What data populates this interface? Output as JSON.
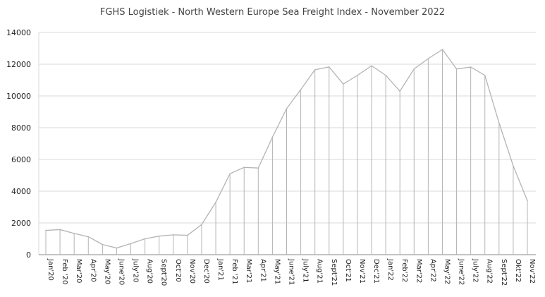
{
  "chart_data": {
    "type": "line",
    "title": "FGHS Logistiek - North Western Europe Sea Freight Index - November 2022",
    "xlabel": "",
    "ylabel": "",
    "ylim": [
      0,
      14000
    ],
    "yticks": [
      "0",
      "2000",
      "4000",
      "6000",
      "8000",
      "10000",
      "12000",
      "14000"
    ],
    "grid": true,
    "categories": [
      "Jan'20",
      "Feb '20",
      "Mar'20",
      "Apr'20",
      "May'20",
      "June'20",
      "July'20",
      "Aug'20",
      "Sept'20",
      "Oct'20",
      "Nov'20",
      "Dec'20",
      "Jan'21",
      "Feb '21",
      "Mar'21",
      "Apr'21",
      "May'21",
      "June'21",
      "July'21",
      "Aug'21",
      "Sept'21",
      "Oct'21",
      "Nov'21",
      "Dec'21",
      "Jan'22",
      "Feb'22",
      "Mar'22",
      "Apr'22",
      "May'22",
      "June'22",
      "July'22",
      "Aug'22",
      "Sept'22",
      "Okt'22",
      "Nov'22"
    ],
    "series": [
      {
        "name": "Sea Freight Index",
        "values": [
          1530,
          1580,
          1340,
          1130,
          640,
          420,
          700,
          1000,
          1170,
          1250,
          1220,
          1900,
          3300,
          5100,
          5500,
          5460,
          7400,
          9200,
          10400,
          11650,
          11830,
          10750,
          11300,
          11900,
          11300,
          10300,
          11700,
          12350,
          12930,
          11700,
          11820,
          11300,
          8300,
          5600,
          3400
        ]
      }
    ],
    "colors": {
      "line": "#b4b4b4",
      "grid": "#d9d9d9",
      "axis": "#888888"
    }
  }
}
